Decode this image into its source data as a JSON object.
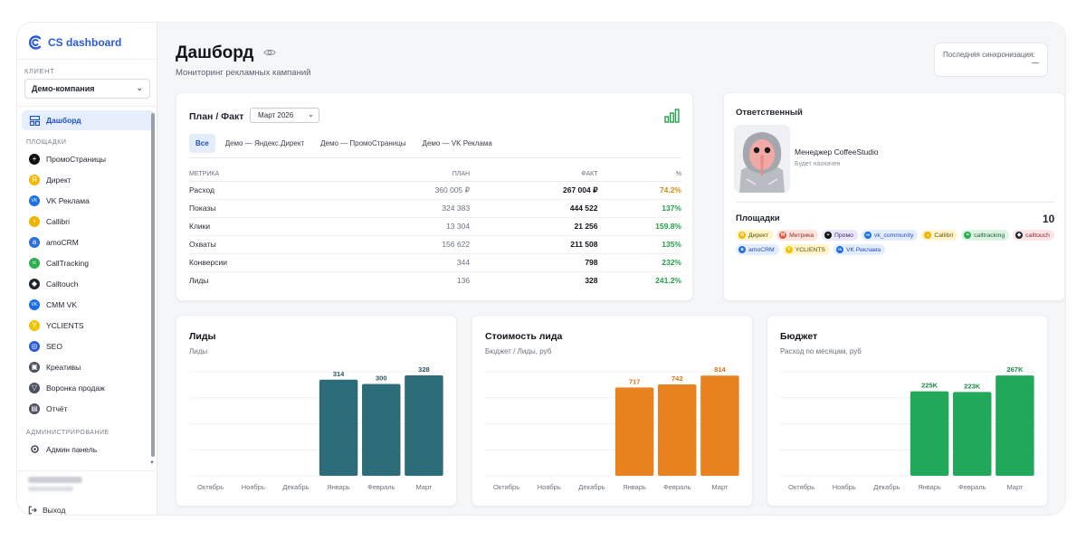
{
  "app": {
    "title": "CS dashboard"
  },
  "sidebar": {
    "client_label": "КЛИЕНТ",
    "client_value": "Демо-компания",
    "active_item": "Дашборд",
    "platforms_label": "ПЛОЩАДКИ",
    "items": [
      {
        "label": "ПромоСтраницы",
        "icon": "promo-icon",
        "color": "#111111",
        "glyph": "+"
      },
      {
        "label": "Директ",
        "icon": "direct-icon",
        "color": "#f5b800",
        "glyph": "Я"
      },
      {
        "label": "VK Реклама",
        "icon": "vk-icon",
        "color": "#1a6fe8",
        "glyph": "VK"
      },
      {
        "label": "Callibri",
        "icon": "callibri-icon",
        "color": "#f0b400",
        "glyph": "ıl"
      },
      {
        "label": "amoCRM",
        "icon": "amocrm-icon",
        "color": "#2b6fd9",
        "glyph": "a"
      },
      {
        "label": "CallTracking",
        "icon": "calltracking-icon",
        "color": "#2eae4f",
        "glyph": "≈"
      },
      {
        "label": "Calltouch",
        "icon": "calltouch-icon",
        "color": "#1e2330",
        "glyph": "◆"
      },
      {
        "label": "CMM VK",
        "icon": "cmm-vk-icon",
        "color": "#1a6fe8",
        "glyph": "VK"
      },
      {
        "label": "YCLIENTS",
        "icon": "yclients-icon",
        "color": "#f2c300",
        "glyph": "Y"
      },
      {
        "label": "SEO",
        "icon": "seo-icon",
        "color": "#2a5bd7",
        "glyph": "◎"
      },
      {
        "label": "Креативы",
        "icon": "image-icon",
        "color": "#4b5060",
        "glyph": "▣"
      },
      {
        "label": "Воронка продаж",
        "icon": "funnel-icon",
        "color": "#4b5060",
        "glyph": "▽"
      },
      {
        "label": "Отчёт",
        "icon": "report-icon",
        "color": "#4b5060",
        "glyph": "▤"
      }
    ],
    "admin_label": "АДМИНИСТРИРОВАНИЕ",
    "admin_item": "Админ панель",
    "logout": "Выход"
  },
  "header": {
    "title": "Дашборд",
    "subtitle": "Мониторинг рекламных кампаний",
    "sync_label": "Последняя синхронизация:",
    "sync_value": "—"
  },
  "plan_fact": {
    "title": "План / Факт",
    "month": "Март 2026",
    "tabs": [
      "Все",
      "Демо — Яндекс.Директ",
      "Демо — ПромоСтраницы",
      "Демо — VK Реклама"
    ],
    "columns": [
      "МЕТРИКА",
      "ПЛАН",
      "ФАКТ",
      "%"
    ],
    "rows": [
      {
        "metric": "Расход",
        "plan": "360 005 ₽",
        "fact": "267 004 ₽",
        "pct": "74.2%",
        "pct_color": "#d98a10"
      },
      {
        "metric": "Показы",
        "plan": "324 383",
        "fact": "444 522",
        "pct": "137%",
        "pct_color": "#22a04b"
      },
      {
        "metric": "Клики",
        "plan": "13 304",
        "fact": "21 256",
        "pct": "159.8%",
        "pct_color": "#22a04b"
      },
      {
        "metric": "Охваты",
        "plan": "156 622",
        "fact": "211 508",
        "pct": "135%",
        "pct_color": "#22a04b"
      },
      {
        "metric": "Конверсии",
        "plan": "344",
        "fact": "798",
        "pct": "232%",
        "pct_color": "#22a04b"
      },
      {
        "metric": "Лиды",
        "plan": "136",
        "fact": "328",
        "pct": "241.2%",
        "pct_color": "#22a04b"
      }
    ]
  },
  "responsible": {
    "title": "Ответственный",
    "manager": "Менеджер CoffeeStudio",
    "note": "Будет назначен",
    "platforms_title": "Площадки",
    "platforms_count": "10",
    "chips": [
      {
        "label": "Директ",
        "bg": "#fff4cc",
        "fg": "#6b5200",
        "dot": "#f5b800",
        "glyph": "Я"
      },
      {
        "label": "Метрика",
        "bg": "#fde4e1",
        "fg": "#8a2a1e",
        "dot": "#e5533d",
        "glyph": "M"
      },
      {
        "label": "Промо",
        "bg": "#ece6fb",
        "fg": "#3b2c7a",
        "dot": "#111111",
        "glyph": "+"
      },
      {
        "label": "vk_community",
        "bg": "#e3edfc",
        "fg": "#1e4fc2",
        "dot": "#1a6fe8",
        "glyph": "VK"
      },
      {
        "label": "Callibri",
        "bg": "#fff4cc",
        "fg": "#6b5200",
        "dot": "#f0b400",
        "glyph": "ıl"
      },
      {
        "label": "calltracking",
        "bg": "#dff3e5",
        "fg": "#17632e",
        "dot": "#2eae4f",
        "glyph": "≈"
      },
      {
        "label": "calltouch",
        "bg": "#fde4e6",
        "fg": "#8a2a34",
        "dot": "#1e2330",
        "glyph": "◆"
      },
      {
        "label": "amoCRM",
        "bg": "#e3edfc",
        "fg": "#1e4fc2",
        "dot": "#2b6fd9",
        "glyph": "a"
      },
      {
        "label": "YCLIENTS",
        "bg": "#fff4cc",
        "fg": "#6b5200",
        "dot": "#f2c300",
        "glyph": "Y"
      },
      {
        "label": "VK Реклама",
        "bg": "#e3edfc",
        "fg": "#1e4fc2",
        "dot": "#1a6fe8",
        "glyph": "VK"
      }
    ]
  },
  "chart_data": [
    {
      "type": "bar",
      "title": "Лиды",
      "subtitle": "Лиды",
      "categories": [
        "Октябрь",
        "Ноябрь",
        "Декабрь",
        "Январь",
        "Февраль",
        "Март"
      ],
      "values": [
        0,
        0,
        0,
        314,
        300,
        328
      ],
      "labels": [
        "",
        "",
        "",
        "314",
        "300",
        "328"
      ],
      "color": "#2c6b78",
      "label_color": "#2c5560",
      "ylim": [
        0,
        340
      ]
    },
    {
      "type": "bar",
      "title": "Стоимость лида",
      "subtitle": "Бюджет / Лиды, руб",
      "categories": [
        "Октябрь",
        "Ноябрь",
        "Декабрь",
        "Январь",
        "Февраль",
        "Март"
      ],
      "values": [
        0,
        0,
        0,
        717,
        742,
        814
      ],
      "labels": [
        "",
        "",
        "",
        "717",
        "742",
        "814"
      ],
      "color": "#e8821f",
      "label_color": "#d57316",
      "ylim": [
        0,
        845
      ]
    },
    {
      "type": "bar",
      "title": "Бюджет",
      "subtitle": "Расход по месяцам, руб",
      "categories": [
        "Октябрь",
        "Ноябрь",
        "Декабрь",
        "Январь",
        "Февраль",
        "Март"
      ],
      "values": [
        0,
        0,
        0,
        225000,
        223000,
        267000
      ],
      "labels": [
        "",
        "",
        "",
        "225K",
        "223K",
        "267K"
      ],
      "color": "#22a85a",
      "label_color": "#1d8a49",
      "ylim": [
        0,
        277000
      ]
    }
  ]
}
